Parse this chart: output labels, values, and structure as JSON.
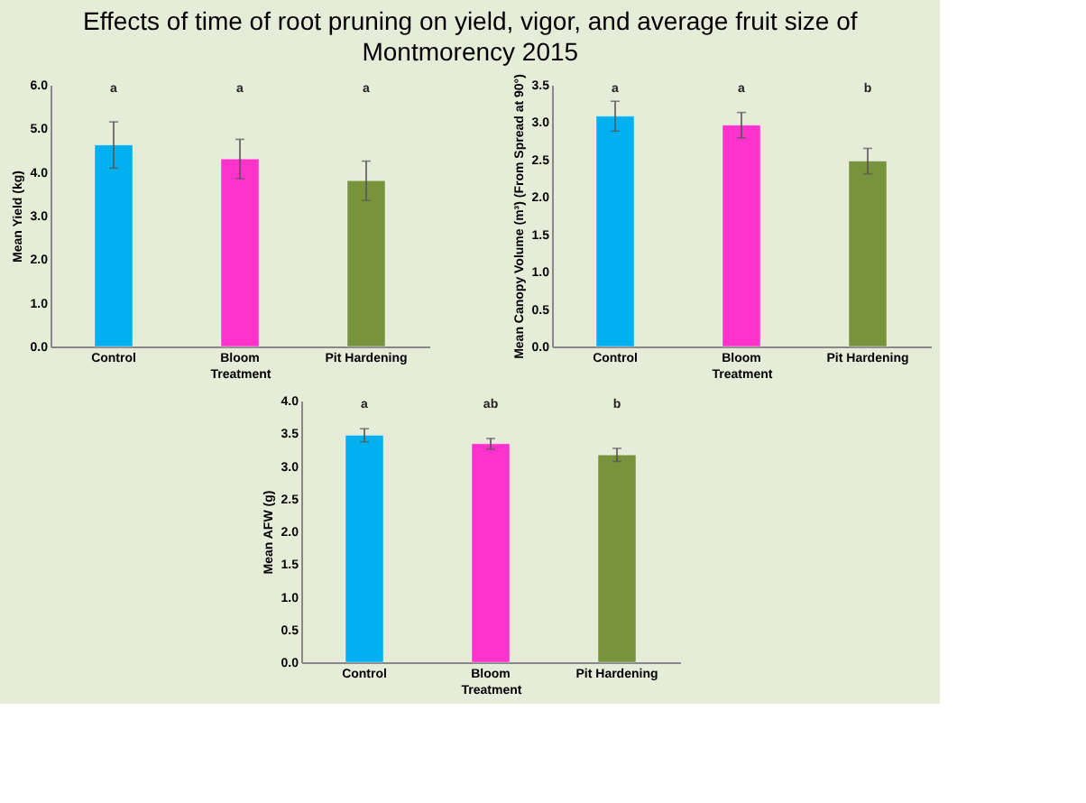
{
  "chart_data": [
    {
      "type": "bar",
      "title": "Effects of time of root pruning on yield, vigor, and average fruit size of Montmorency 2015",
      "categories": [
        "Control",
        "Bloom",
        "Pit Hardening"
      ],
      "values": [
        4.62,
        4.3,
        3.8
      ],
      "errors": [
        0.53,
        0.45,
        0.45
      ],
      "colors": [
        "#00b0f0",
        "#ff33cc",
        "#77933c"
      ],
      "xlabel": "Treatment",
      "ylabel": "Mean Yield (kg)",
      "ylim": [
        0,
        6
      ],
      "yticks": [
        {
          "value": 0,
          "label": "0.0"
        },
        {
          "value": 1,
          "label": "1.0"
        },
        {
          "value": 2,
          "label": "2.0"
        },
        {
          "value": 3,
          "label": "3.0"
        },
        {
          "value": 4,
          "label": "4.0"
        },
        {
          "value": 5,
          "label": "5.0"
        },
        {
          "value": 6,
          "label": "6.0"
        }
      ],
      "grid": false,
      "annotations": [
        "a",
        "a",
        "a"
      ]
    },
    {
      "type": "bar",
      "categories": [
        "Control",
        "Bloom",
        "Pit Hardening"
      ],
      "values": [
        3.08,
        2.96,
        2.48
      ],
      "errors": [
        0.2,
        0.17,
        0.17
      ],
      "colors": [
        "#00b0f0",
        "#ff33cc",
        "#77933c"
      ],
      "xlabel": "Treatment",
      "ylabel": "Mean Canopy Volume (m³) (From Spread at 90°)",
      "ylim": [
        0,
        3.5
      ],
      "yticks": [
        {
          "value": 0,
          "label": "0.0"
        },
        0.5,
        {
          "value": 1,
          "label": "1.0"
        },
        1.5,
        {
          "value": 2,
          "label": "2.0"
        },
        2.5,
        {
          "value": 3,
          "label": "3.0"
        },
        3.5
      ],
      "grid": false,
      "annotations": [
        "a",
        "a",
        "b"
      ]
    },
    {
      "type": "bar",
      "categories": [
        "Control",
        "Bloom",
        "Pit Hardening"
      ],
      "values": [
        3.47,
        3.34,
        3.17
      ],
      "errors": [
        0.1,
        0.08,
        0.1
      ],
      "colors": [
        "#00b0f0",
        "#ff33cc",
        "#77933c"
      ],
      "xlabel": "Treatment",
      "ylabel": "Mean AFW (g)",
      "ylim": [
        0,
        4
      ],
      "yticks": [
        {
          "value": 0,
          "label": "0.0"
        },
        0.5,
        {
          "value": 1,
          "label": "1.0"
        },
        1.5,
        {
          "value": 2,
          "label": "2.0"
        },
        2.5,
        {
          "value": 3,
          "label": "3.0"
        },
        3.5,
        {
          "value": 4,
          "label": "4.0"
        }
      ],
      "grid": false,
      "annotations": [
        "a",
        "ab",
        "b"
      ]
    }
  ]
}
